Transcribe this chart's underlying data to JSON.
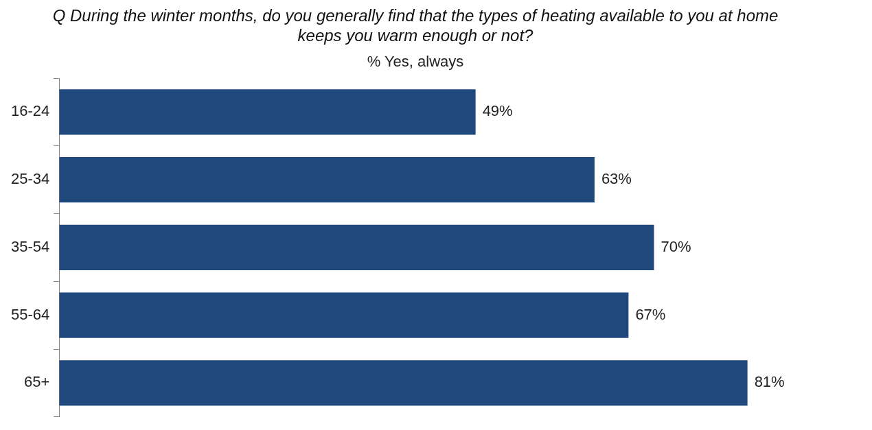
{
  "chart_data": {
    "type": "bar",
    "orientation": "horizontal",
    "title": "Q During the winter months, do you generally find that the types of heating available to you at home keeps you warm enough or not?",
    "subtitle": "% Yes, always",
    "categories": [
      "16-24",
      "25-34",
      "35-54",
      "55-64",
      "65+"
    ],
    "values": [
      49,
      63,
      70,
      67,
      81
    ],
    "color": "#1f497d",
    "value_labels": [
      "49%",
      "63%",
      "70%",
      "67%",
      "81%"
    ],
    "tick_labels": "y",
    "legend": false
  }
}
